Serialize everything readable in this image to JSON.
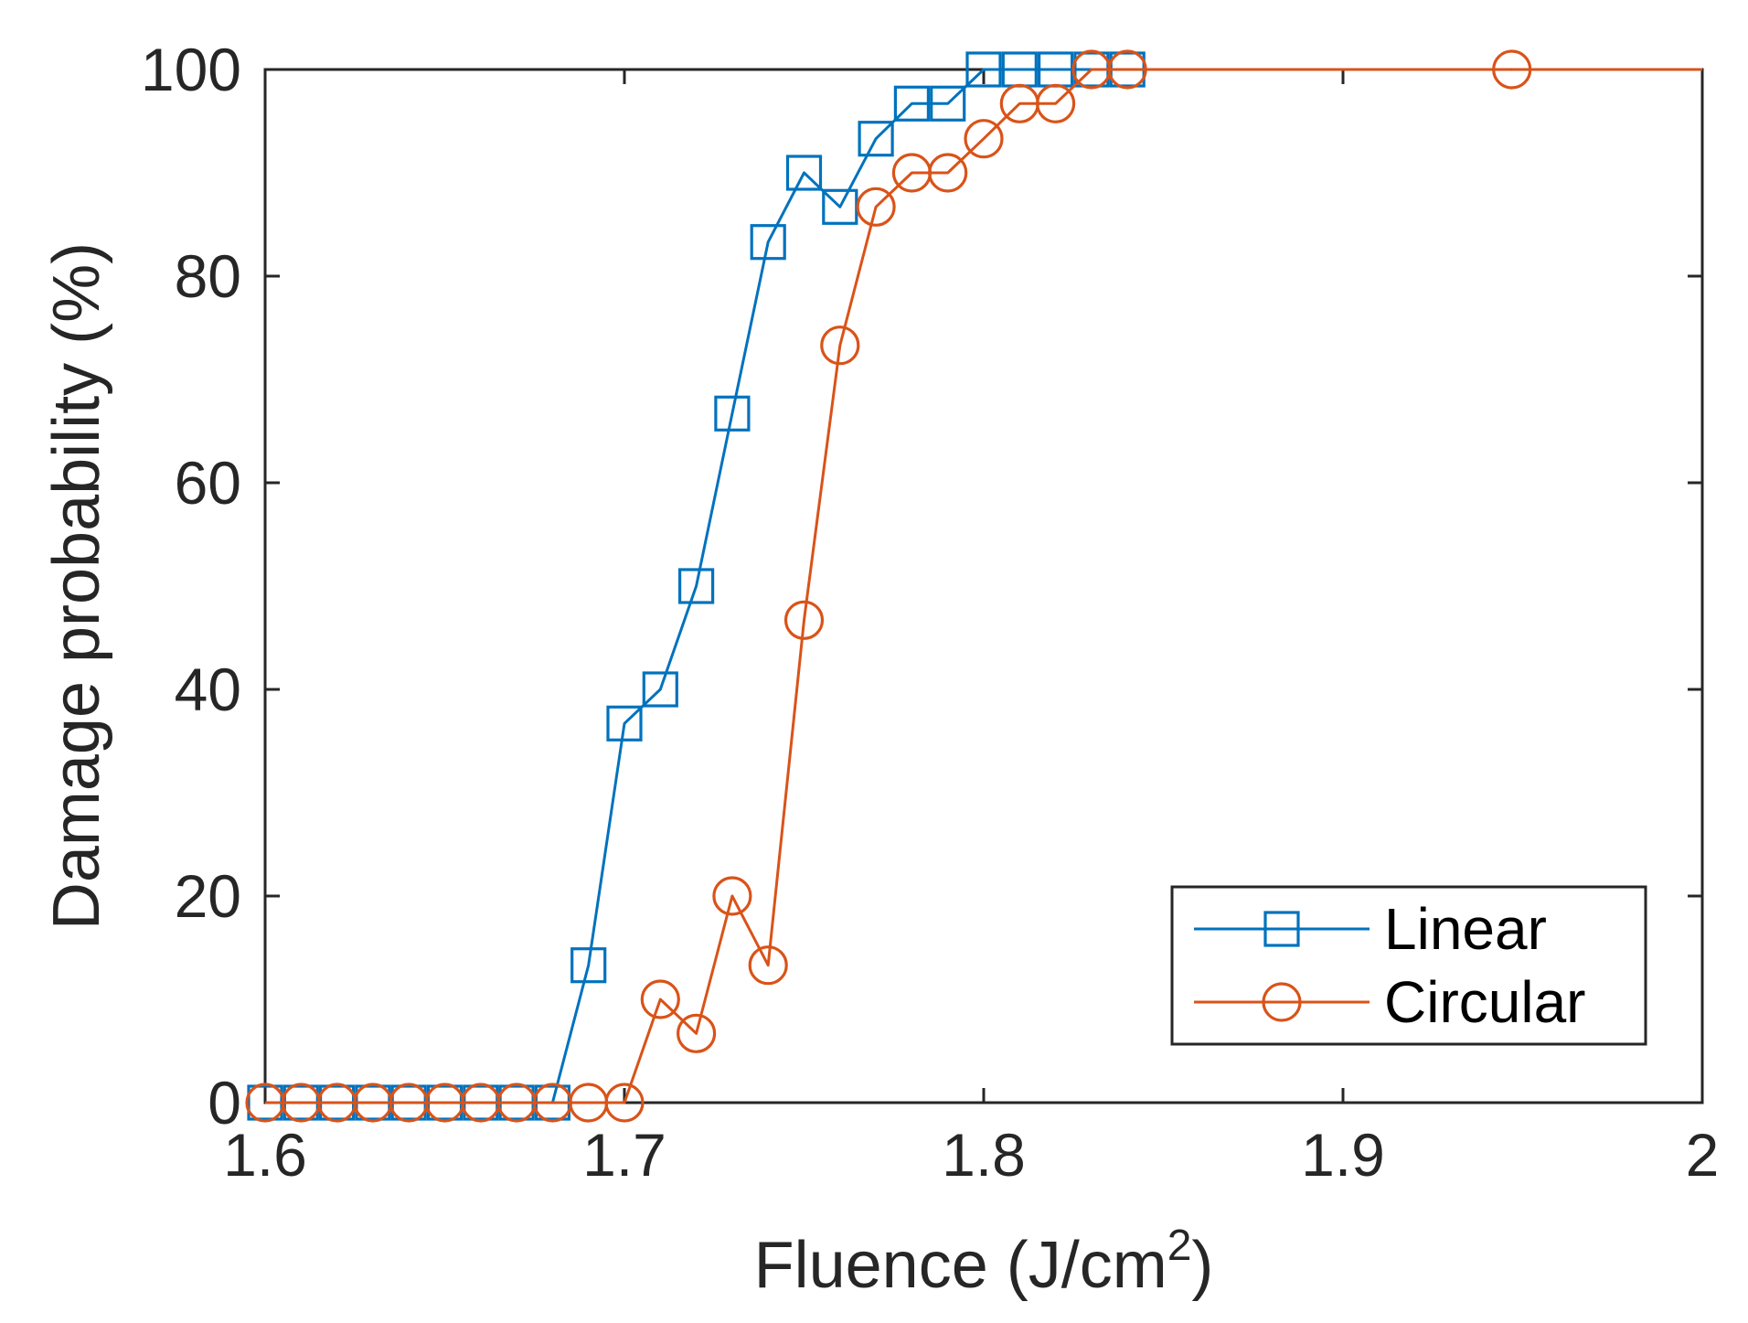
{
  "chart_data": {
    "type": "line",
    "title": "",
    "xlabel": "Fluence (J/cm",
    "xlabel_superscript": "2",
    "xlabel_suffix": ")",
    "ylabel": "Damage probability (%)",
    "xlim": [
      1.6,
      2.0
    ],
    "ylim": [
      0,
      100
    ],
    "grid": false,
    "legend_position": "bottom-right",
    "x_ticks": [
      1.6,
      1.7,
      1.8,
      1.9,
      2.0
    ],
    "x_tick_labels": [
      "1.6",
      "1.7",
      "1.8",
      "1.9",
      "2"
    ],
    "y_ticks": [
      0,
      20,
      40,
      60,
      80,
      100
    ],
    "y_tick_labels": [
      "0",
      "20",
      "40",
      "60",
      "80",
      "100"
    ],
    "series": [
      {
        "name": "Linear",
        "marker": "square",
        "color": "#0072BD",
        "x": [
          1.6,
          1.61,
          1.62,
          1.63,
          1.64,
          1.65,
          1.66,
          1.67,
          1.68,
          1.69,
          1.7,
          1.71,
          1.72,
          1.73,
          1.74,
          1.75,
          1.76,
          1.77,
          1.78,
          1.79,
          1.8,
          1.81,
          1.82,
          1.83,
          1.84
        ],
        "y": [
          0,
          0,
          0,
          0,
          0,
          0,
          0,
          0,
          0,
          13.3,
          36.7,
          40,
          50,
          66.7,
          83.3,
          90,
          86.7,
          93.3,
          96.7,
          96.7,
          100,
          100,
          100,
          100,
          100
        ]
      },
      {
        "name": "Circular",
        "marker": "circle",
        "color": "#D95319",
        "x": [
          1.6,
          1.61,
          1.62,
          1.63,
          1.64,
          1.65,
          1.66,
          1.67,
          1.68,
          1.69,
          1.7,
          1.71,
          1.72,
          1.73,
          1.74,
          1.75,
          1.76,
          1.77,
          1.78,
          1.79,
          1.8,
          1.81,
          1.82,
          1.83,
          1.84,
          1.947
        ],
        "y": [
          0,
          0,
          0,
          0,
          0,
          0,
          0,
          0,
          0,
          0,
          0,
          10,
          6.7,
          20,
          13.3,
          46.7,
          73.3,
          86.7,
          90,
          90,
          93.3,
          96.7,
          96.7,
          100,
          100,
          100
        ]
      }
    ]
  },
  "extra_lines": [
    {
      "series": "Circular",
      "x": [
        1.947,
        2.0
      ],
      "y": [
        100,
        100
      ]
    }
  ]
}
